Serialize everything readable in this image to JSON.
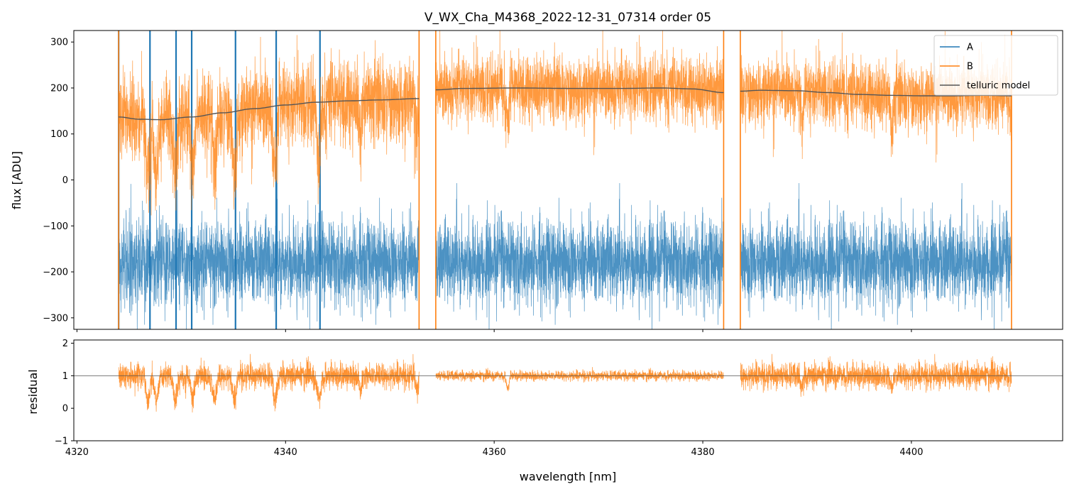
{
  "figure": {
    "title": "V_WX_Cha_M4368_2022-12-31_07314  order 05"
  },
  "chart_data": [
    {
      "type": "line",
      "panel": "top",
      "title": "V_WX_Cha_M4368_2022-12-31_07314  order 05",
      "xlabel": "",
      "ylabel": "flux [ADU]",
      "xlim": [
        4319.7,
        4414.5
      ],
      "ylim": [
        -325,
        325
      ],
      "yticks": [
        {
          "value": -300,
          "label": "−300"
        },
        {
          "value": -200,
          "label": "−200"
        },
        {
          "value": -100,
          "label": "−100"
        },
        {
          "value": 0,
          "label": "0"
        },
        {
          "value": 100,
          "label": "100"
        },
        {
          "value": 200,
          "label": "200"
        },
        {
          "value": 300,
          "label": "300"
        }
      ],
      "xticks": [
        4320,
        4340,
        4360,
        4380,
        4400
      ],
      "grid": false,
      "legend_position": "top-right",
      "segments": [
        {
          "start": 4324.0,
          "end": 4352.8
        },
        {
          "start": 4354.4,
          "end": 4382.0
        },
        {
          "start": 4383.6,
          "end": 4409.6
        }
      ],
      "series": [
        {
          "name": "A",
          "color": "#1f77b4",
          "kind": "noisy",
          "level": -180,
          "noise_sigma": 45,
          "note_strong_absorption_or_spikes": [
            4324.0,
            4327.0,
            4329.5,
            4331.0,
            4335.2,
            4339.1,
            4343.3
          ]
        },
        {
          "name": "B",
          "color": "#ff7f0e",
          "kind": "noisy",
          "scale_from": "telluric model",
          "noise_sigma": 35,
          "absorption_lines": [
            4326.8,
            4327.6,
            4329.4,
            4331.1,
            4333.2,
            4335.1,
            4339.0,
            4343.2,
            4347.2,
            4352.6,
            4361.3,
            4389.5,
            4398.1
          ]
        },
        {
          "name": "telluric model",
          "color": "#555555",
          "kind": "smooth",
          "points": [
            [
              4324.0,
              137
            ],
            [
              4326.0,
              132
            ],
            [
              4328.0,
              131
            ],
            [
              4331.0,
              137
            ],
            [
              4334.0,
              146
            ],
            [
              4337.0,
              155
            ],
            [
              4340.0,
              163
            ],
            [
              4343.0,
              169
            ],
            [
              4346.0,
              172
            ],
            [
              4349.0,
              174
            ],
            [
              4352.8,
              177
            ],
            null,
            [
              4354.4,
              196
            ],
            [
              4357.0,
              199
            ],
            [
              4362.0,
              200
            ],
            [
              4368.0,
              199
            ],
            [
              4372.0,
              199
            ],
            [
              4376.0,
              200
            ],
            [
              4379.0,
              198
            ],
            [
              4382.0,
              190
            ],
            null,
            [
              4383.6,
              193
            ],
            [
              4385.5,
              195
            ],
            [
              4389.0,
              194
            ],
            [
              4392.0,
              190
            ],
            [
              4395.0,
              186
            ],
            [
              4398.0,
              184
            ],
            [
              4401.0,
              183
            ],
            [
              4404.0,
              183
            ],
            [
              4407.0,
              184
            ],
            [
              4409.6,
              183
            ]
          ]
        }
      ]
    },
    {
      "type": "line",
      "panel": "bottom",
      "title": "",
      "xlabel": "wavelength [nm]",
      "ylabel": "residual",
      "xlim": [
        4319.7,
        4414.5
      ],
      "ylim": [
        -1,
        2.1
      ],
      "yticks": [
        {
          "value": -1,
          "label": "−1"
        },
        {
          "value": 0,
          "label": "0"
        },
        {
          "value": 1,
          "label": "1"
        },
        {
          "value": 2,
          "label": "2"
        }
      ],
      "xticks": [
        4320,
        4340,
        4360,
        4380,
        4400
      ],
      "grid": false,
      "reference_line": 1,
      "series": [
        {
          "name": "B",
          "color": "#ff7f0e",
          "kind": "noisy",
          "level": 1.0,
          "noise_sigma_by_segment": [
            0.25,
            0.1,
            0.25
          ]
        }
      ]
    }
  ]
}
